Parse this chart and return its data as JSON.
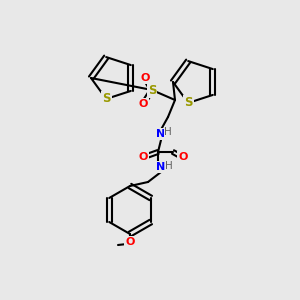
{
  "bg_color": "#e8e8e8",
  "figsize": [
    3.0,
    3.0
  ],
  "dpi": 100,
  "atom_colors": {
    "C": "#000000",
    "N": "#0000ff",
    "O": "#ff0000",
    "S": "#999900",
    "H": "#808080"
  },
  "bond_color": "#000000",
  "bond_width": 1.5,
  "font_size": 7.5
}
